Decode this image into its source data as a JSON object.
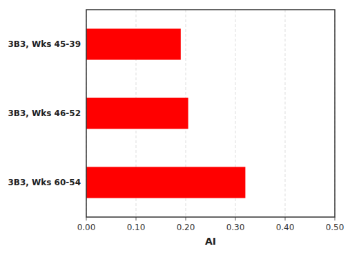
{
  "chart_data": {
    "type": "bar",
    "orientation": "horizontal",
    "categories": [
      "3B3, Wks 45-39",
      "3B3, Wks 46-52",
      "3B3, Wks 60-54"
    ],
    "values": [
      0.19,
      0.205,
      0.32
    ],
    "color": "#ff0000",
    "xlabel": "AI",
    "xlim": [
      0.0,
      0.5
    ],
    "xticks": [
      {
        "value": 0.0,
        "label": "0.00"
      },
      {
        "value": 0.1,
        "label": "0.10"
      },
      {
        "value": 0.2,
        "label": "0.20"
      },
      {
        "value": 0.3,
        "label": "0.30"
      },
      {
        "value": 0.4,
        "label": "0.40"
      },
      {
        "value": 0.5,
        "label": "0.50"
      }
    ],
    "grid": true
  }
}
